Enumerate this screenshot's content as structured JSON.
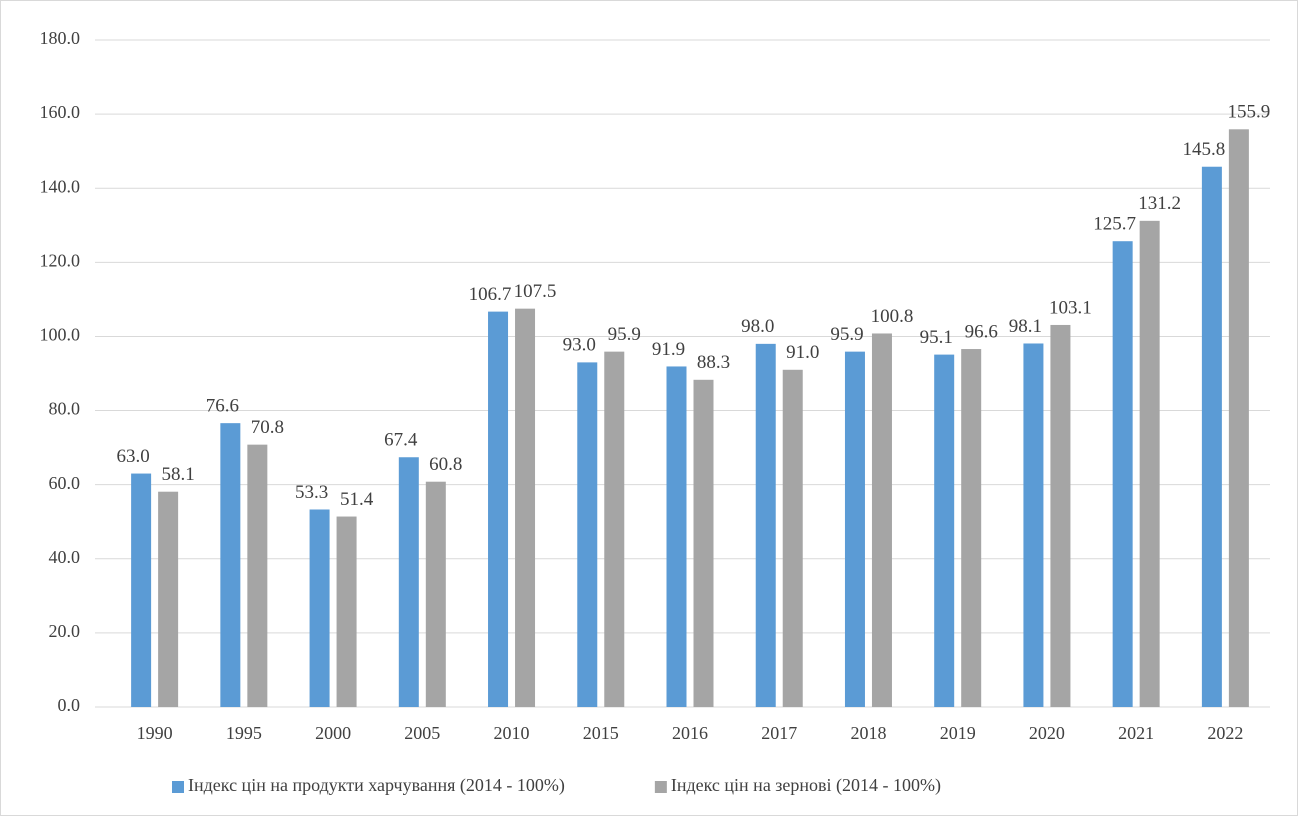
{
  "chart_data": {
    "type": "bar",
    "categories": [
      "1990",
      "1995",
      "2000",
      "2005",
      "2010",
      "2015",
      "2016",
      "2017",
      "2018",
      "2019",
      "2020",
      "2021",
      "2022"
    ],
    "series": [
      {
        "name": "Індекс цін на продукти харчування (2014 - 100%)",
        "color": "#5b9bd5",
        "values": [
          63.0,
          76.6,
          53.3,
          67.4,
          106.7,
          93.0,
          91.9,
          98.0,
          95.9,
          95.1,
          98.1,
          125.7,
          145.8
        ],
        "value_labels": [
          "63.0",
          "76.6",
          "53.3",
          "67.4",
          "106.7",
          "93.0",
          "91.9",
          "98.0",
          "95.9",
          "95.1",
          "98.1",
          "125.7",
          "145.8"
        ]
      },
      {
        "name": "Індекс цін на зернові (2014 - 100%)",
        "color": "#a5a5a5",
        "values": [
          58.1,
          70.8,
          51.4,
          60.8,
          107.5,
          95.9,
          88.3,
          91.0,
          100.8,
          96.6,
          103.1,
          131.2,
          155.9
        ],
        "value_labels": [
          "58.1",
          "70.8",
          "51.4",
          "60.8",
          "107.5",
          "95.9",
          "88.3",
          "91.0",
          "100.8",
          "96.6",
          "103.1",
          "131.2",
          "155.9"
        ]
      }
    ],
    "ylim": [
      0,
      180
    ],
    "yticks": [
      {
        "value": 0,
        "label": "0.0"
      },
      {
        "value": 20,
        "label": "20.0"
      },
      {
        "value": 40,
        "label": "40.0"
      },
      {
        "value": 60,
        "label": "60.0"
      },
      {
        "value": 80,
        "label": "80.0"
      },
      {
        "value": 100,
        "label": "100.0"
      },
      {
        "value": 120,
        "label": "120.0"
      },
      {
        "value": 140,
        "label": "140.0"
      },
      {
        "value": 160,
        "label": "160.0"
      },
      {
        "value": 180,
        "label": "180.0"
      }
    ],
    "grid": true,
    "legend": "bottom"
  }
}
